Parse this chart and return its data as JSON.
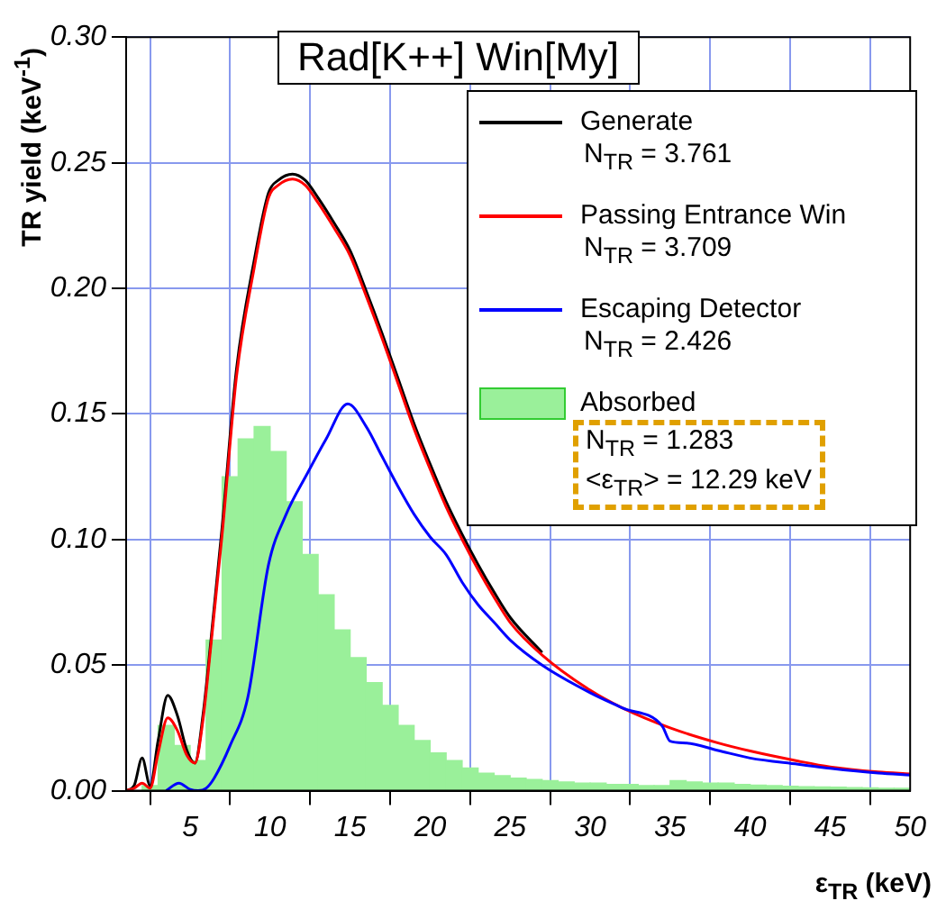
{
  "chart_data": {
    "type": "line",
    "title": "Rad[K++] Win[My]",
    "xlabel": "ε$_{TR}$ (keV)",
    "ylabel": "TR yield (keV$^{-1}$)",
    "xlim": [
      1,
      50
    ],
    "ylim": [
      0,
      0.3
    ],
    "xticks": [
      5,
      10,
      15,
      20,
      25,
      30,
      35,
      40,
      45,
      50
    ],
    "yticks": [
      {
        "value": 0,
        "label": "0.00"
      },
      {
        "value": 0.05,
        "label": "0.05"
      },
      {
        "value": 0.1,
        "label": "0.10"
      },
      {
        "value": 0.15,
        "label": "0.15"
      },
      {
        "value": 0.2,
        "label": "0.20"
      },
      {
        "value": 0.25,
        "label": "0.25"
      },
      {
        "value": 0.3,
        "label": "0.30"
      }
    ],
    "grid": true,
    "legend": "top right",
    "annotations": [
      "N$_{TR}$ = 3.761",
      "N$_{TR}$ = 3.709",
      "N$_{TR}$ = 2.426",
      "N$_{TR}$ = 1.283",
      "<ε$_{TR}$> = 12.29 keV"
    ],
    "series": [
      {
        "name": "Generate",
        "type": "line",
        "color": "#000000",
        "x": [
          1,
          1.5,
          2,
          2.5,
          3,
          3.6,
          4.2,
          4.8,
          5.3,
          5.8,
          6.3,
          7,
          7.9,
          9,
          9.9,
          10.5,
          11.4,
          12.2,
          13,
          14,
          15,
          16,
          17,
          18,
          19,
          20,
          21,
          22,
          23,
          24,
          25,
          27
        ],
        "values": [
          0,
          0.002,
          0.013,
          0.002,
          0.02,
          0.038,
          0.03,
          0.016,
          0.011,
          0.03,
          0.06,
          0.105,
          0.168,
          0.211,
          0.238,
          0.243,
          0.2455,
          0.243,
          0.236,
          0.226,
          0.215,
          0.199,
          0.182,
          0.164,
          0.146,
          0.13,
          0.115,
          0.102,
          0.09,
          0.079,
          0.069,
          0.055
        ]
      },
      {
        "name": "Passing Entrance Win",
        "type": "line",
        "color": "#ff0000",
        "x": [
          1,
          1.5,
          2,
          2.5,
          3,
          3.6,
          4.2,
          4.8,
          5.3,
          5.8,
          6.3,
          7,
          7.9,
          9,
          9.9,
          10.5,
          11.4,
          12.2,
          13,
          14,
          15,
          16,
          17,
          18,
          19,
          20,
          21,
          22,
          23,
          24,
          25,
          27,
          30,
          32,
          35,
          38,
          40,
          43,
          45,
          48,
          50
        ],
        "values": [
          0,
          0.001,
          0.003,
          0.001,
          0.015,
          0.029,
          0.024,
          0.014,
          0.011,
          0.028,
          0.058,
          0.102,
          0.165,
          0.208,
          0.236,
          0.241,
          0.2435,
          0.241,
          0.234,
          0.224,
          0.213,
          0.197,
          0.18,
          0.162,
          0.144,
          0.128,
          0.113,
          0.1,
          0.088,
          0.077,
          0.067,
          0.054,
          0.04,
          0.033,
          0.025,
          0.019,
          0.0158,
          0.0118,
          0.0095,
          0.0075,
          0.0067
        ]
      },
      {
        "name": "Escaping Detector",
        "type": "line",
        "color": "#0000ff",
        "x": [
          3.5,
          4.3,
          5,
          5.5,
          6,
          6.5,
          7.5,
          8.6,
          9.9,
          11,
          12.3,
          13.5,
          14.85,
          16,
          17,
          18,
          19,
          20,
          21,
          22,
          23,
          24,
          25,
          27,
          30,
          32,
          34.5,
          35,
          36,
          38,
          40,
          43,
          45,
          48,
          50
        ],
        "values": [
          0,
          0.003,
          0.0005,
          0,
          0.001,
          0.005,
          0.018,
          0.037,
          0.09,
          0.11,
          0.126,
          0.14,
          0.154,
          0.145,
          0.133,
          0.121,
          0.11,
          0.101,
          0.094,
          0.083,
          0.074,
          0.067,
          0.06,
          0.05,
          0.039,
          0.033,
          0.0258,
          0.0197,
          0.019,
          0.016,
          0.013,
          0.0105,
          0.0089,
          0.007,
          0.0062
        ]
      },
      {
        "name": "Absorbed",
        "type": "histogram",
        "color": "#9af09a",
        "bins": [
          1,
          2,
          3,
          4,
          5,
          6,
          7,
          8,
          9,
          10,
          11,
          12,
          13,
          14,
          15,
          16,
          17,
          18,
          19,
          20,
          21,
          22,
          23,
          24,
          25,
          26,
          27,
          28,
          29,
          30,
          31,
          32,
          33,
          34,
          35,
          36,
          37,
          38,
          39,
          40,
          41,
          42,
          43,
          44,
          45,
          46,
          47,
          48,
          49,
          50
        ],
        "values": [
          0,
          0.002,
          0.026,
          0.018,
          0.012,
          0.06,
          0.125,
          0.14,
          0.145,
          0.135,
          0.115,
          0.094,
          0.078,
          0.064,
          0.053,
          0.043,
          0.034,
          0.026,
          0.02,
          0.015,
          0.012,
          0.009,
          0.007,
          0.006,
          0.005,
          0.0045,
          0.004,
          0.0035,
          0.003,
          0.003,
          0.0025,
          0.0025,
          0.002,
          0.002,
          0.004,
          0.0035,
          0.003,
          0.003,
          0.0025,
          0.0022,
          0.002,
          0.0018,
          0.0016,
          0.0015,
          0.0014,
          0.0012,
          0.0011,
          0.001,
          0.001
        ]
      }
    ]
  }
}
